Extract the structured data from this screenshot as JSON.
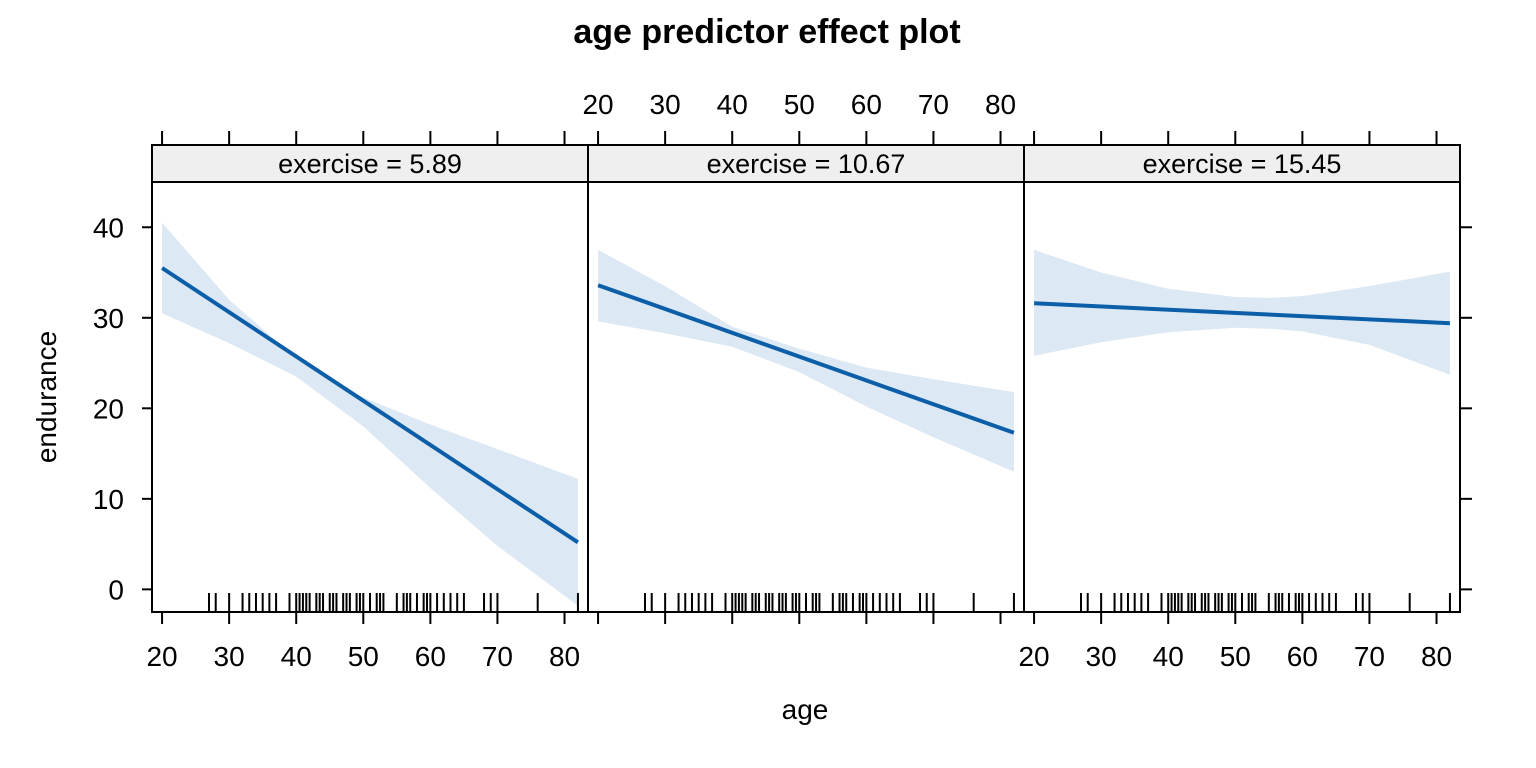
{
  "chart_data": {
    "type": "line",
    "title": "age predictor effect plot",
    "xlabel": "age",
    "ylabel": "endurance",
    "xlim": [
      18.5,
      83.5
    ],
    "ylim": [
      -2.5,
      45
    ],
    "x_ticks": [
      20,
      30,
      40,
      50,
      60,
      70,
      80
    ],
    "y_ticks": [
      0,
      10,
      20,
      30,
      40
    ],
    "grid": false,
    "colors": {
      "line": "#0b5ea7",
      "band": "#dce8f3",
      "strip": "#efefef"
    },
    "panels": [
      {
        "label": "exercise = 5.89",
        "fit": {
          "x": [
            20,
            82
          ],
          "y": [
            35.5,
            5.2
          ]
        },
        "band": {
          "x": [
            20,
            30,
            40,
            50,
            60,
            70,
            82
          ],
          "lower": [
            30.5,
            27.2,
            23.5,
            18.0,
            11.2,
            4.8,
            -1.8
          ],
          "upper": [
            40.5,
            32.0,
            25.5,
            21.2,
            18.2,
            15.5,
            12.2
          ]
        }
      },
      {
        "label": "exercise = 10.67",
        "fit": {
          "x": [
            20,
            82
          ],
          "y": [
            33.6,
            17.3
          ]
        },
        "band": {
          "x": [
            20,
            30,
            40,
            50,
            60,
            70,
            82
          ],
          "lower": [
            29.6,
            28.3,
            26.8,
            24.0,
            20.2,
            16.8,
            13.0
          ],
          "upper": [
            37.5,
            33.5,
            29.0,
            26.6,
            24.5,
            23.2,
            21.8
          ]
        }
      },
      {
        "label": "exercise = 15.45",
        "fit": {
          "x": [
            20,
            82
          ],
          "y": [
            31.6,
            29.4
          ]
        },
        "band": {
          "x": [
            20,
            30,
            40,
            50,
            55,
            60,
            70,
            82
          ],
          "lower": [
            25.8,
            27.3,
            28.4,
            28.9,
            28.8,
            28.5,
            27.0,
            23.7
          ],
          "upper": [
            37.5,
            35.0,
            33.2,
            32.3,
            32.2,
            32.4,
            33.5,
            35.1
          ]
        }
      }
    ],
    "rug": {
      "x": [
        27,
        28,
        30,
        32,
        33,
        34,
        35,
        36,
        37,
        39,
        40,
        40.5,
        41,
        41.5,
        42,
        43,
        43.5,
        44,
        45,
        45.5,
        46,
        47,
        47.5,
        48,
        49,
        49.5,
        50,
        51,
        52,
        52.5,
        53,
        55,
        56,
        56.5,
        57,
        58,
        59,
        59.5,
        60,
        61,
        62,
        63,
        64,
        65,
        68,
        69,
        70,
        76,
        82
      ]
    }
  }
}
